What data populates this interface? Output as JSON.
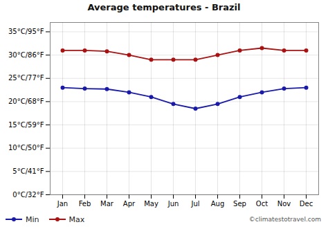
{
  "chart_data": {
    "type": "line",
    "title": "Average temperatures - Brazil",
    "categories": [
      "Jan",
      "Feb",
      "Mar",
      "Apr",
      "May",
      "Jun",
      "Jul",
      "Aug",
      "Sep",
      "Oct",
      "Nov",
      "Dec"
    ],
    "series": [
      {
        "name": "Min",
        "color": "#1a1aaa",
        "marker": "circle",
        "values": [
          23,
          22.8,
          22.7,
          22,
          21,
          19.5,
          18.5,
          19.5,
          21,
          22,
          22.8,
          23
        ]
      },
      {
        "name": "Max",
        "color": "#aa1111",
        "marker": "circle",
        "values": [
          31,
          31,
          30.8,
          30,
          29,
          29,
          29,
          30,
          31,
          31.5,
          31,
          31
        ]
      }
    ],
    "ylim": [
      0,
      37
    ],
    "yticks": [
      {
        "value": 0,
        "label": "0°C/32°F"
      },
      {
        "value": 5,
        "label": "5°C/41°F"
      },
      {
        "value": 10,
        "label": "10°C/50°F"
      },
      {
        "value": 15,
        "label": "15°C/59°F"
      },
      {
        "value": 20,
        "label": "20°C/68°F"
      },
      {
        "value": 25,
        "label": "25°C/77°F"
      },
      {
        "value": 30,
        "label": "30°C/86°F"
      },
      {
        "value": 35,
        "label": "35°C/95°F"
      }
    ],
    "grid": true,
    "legend": "bottom",
    "annotations": [
      "©climatestotravel.com"
    ]
  }
}
